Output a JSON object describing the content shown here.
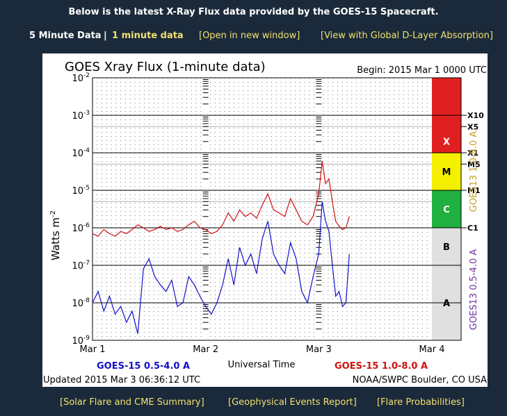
{
  "header": {
    "title": "Below is the latest X-Ray Flux data provided by the GOES-15 Spacecraft."
  },
  "nav": {
    "five_min": "5 Minute Data",
    "sep": "|",
    "one_min": "1 minute data",
    "open_window": "[Open in new window]",
    "dlayer": "[View with Global D-Layer Absorption]"
  },
  "footer": {
    "flare_summary": "[Solar Flare and CME Summary]",
    "geo_events": "[Geophysical Events Report]",
    "flare_prob": "[Flare Probabilities]"
  },
  "colors": {
    "page_bg": "#1b2a3a",
    "short_channel": "#1010c8",
    "long_channel": "#d01010",
    "class_x": "#e02020",
    "class_m": "#f5f000",
    "class_c": "#20b040",
    "class_b_a": "#e0e0e0",
    "goes13_label": "#c8a020",
    "goes13_label2": "#7030a0"
  },
  "chart_data": {
    "type": "line",
    "title": "GOES Xray Flux (1-minute data)",
    "begin": "Begin:  2015 Mar 1 0000 UTC",
    "ylabel": "Watts m",
    "ylabel_sup": "-2",
    "xlabel": "Universal Time",
    "yscale": "log",
    "ylim": [
      1e-09,
      0.01
    ],
    "y_ticks": [
      {
        "base": "10",
        "exp": "-2",
        "value": 0.01
      },
      {
        "base": "10",
        "exp": "-3",
        "value": 0.001
      },
      {
        "base": "10",
        "exp": "-4",
        "value": 0.0001
      },
      {
        "base": "10",
        "exp": "-5",
        "value": 1e-05
      },
      {
        "base": "10",
        "exp": "-6",
        "value": 1e-06
      },
      {
        "base": "10",
        "exp": "-7",
        "value": 1e-07
      },
      {
        "base": "10",
        "exp": "-8",
        "value": 1e-08
      },
      {
        "base": "10",
        "exp": "-9",
        "value": 1e-09
      }
    ],
    "xlim_days": [
      0,
      3
    ],
    "x_ticks": [
      {
        "label": "Mar 1",
        "day": 0
      },
      {
        "label": "Mar 2",
        "day": 1
      },
      {
        "label": "Mar 3",
        "day": 2
      },
      {
        "label": "Mar 4",
        "day": 3
      }
    ],
    "class_labels": [
      {
        "label": "X10",
        "value": 0.001
      },
      {
        "label": "X5",
        "value": 0.0005
      },
      {
        "label": "X1",
        "value": 0.0001
      },
      {
        "label": "M5",
        "value": 5e-05
      },
      {
        "label": "M1",
        "value": 1e-05
      },
      {
        "label": "C1",
        "value": 1e-06
      }
    ],
    "class_bands": [
      {
        "label": "X",
        "lo": 0.0001,
        "hi": 0.01
      },
      {
        "label": "M",
        "lo": 1e-05,
        "hi": 0.0001
      },
      {
        "label": "C",
        "lo": 1e-06,
        "hi": 1e-05
      },
      {
        "label": "B",
        "lo": 1e-07,
        "hi": 1e-06
      },
      {
        "label": "A",
        "lo": 1e-09,
        "hi": 1e-07
      }
    ],
    "right_label_1": "GOES13 1.0-8.0 A",
    "right_label_2": "GOES13 0.5-4.0 A",
    "series": [
      {
        "name": "GOES-15 1.0-8.0 A",
        "x": [
          0,
          0.05,
          0.1,
          0.15,
          0.2,
          0.25,
          0.3,
          0.35,
          0.4,
          0.45,
          0.5,
          0.55,
          0.6,
          0.65,
          0.7,
          0.75,
          0.8,
          0.85,
          0.9,
          0.95,
          1.0,
          1.05,
          1.1,
          1.15,
          1.2,
          1.25,
          1.3,
          1.35,
          1.4,
          1.45,
          1.5,
          1.55,
          1.6,
          1.65,
          1.7,
          1.75,
          1.8,
          1.85,
          1.9,
          1.95,
          2.0,
          2.03,
          2.06,
          2.09,
          2.12,
          2.15,
          2.18,
          2.21,
          2.24,
          2.27
        ],
        "values": [
          7e-07,
          6e-07,
          9e-07,
          7e-07,
          6e-07,
          8e-07,
          7e-07,
          9e-07,
          1.2e-06,
          1e-06,
          8e-07,
          9e-07,
          1.1e-06,
          9e-07,
          1e-06,
          8e-07,
          9e-07,
          1.2e-06,
          1.5e-06,
          1e-06,
          9e-07,
          7e-07,
          8e-07,
          1.2e-06,
          2.5e-06,
          1.5e-06,
          3e-06,
          2e-06,
          2.5e-06,
          1.8e-06,
          4e-06,
          8e-06,
          3e-06,
          2.5e-06,
          2e-06,
          6e-06,
          3e-06,
          1.5e-06,
          1.2e-06,
          2e-06,
          8e-06,
          6e-05,
          1.5e-05,
          2e-05,
          5e-06,
          1.5e-06,
          1.1e-06,
          9e-07,
          1e-06,
          2e-06
        ]
      },
      {
        "name": "GOES-15 0.5-4.0 A",
        "x": [
          0,
          0.05,
          0.1,
          0.15,
          0.2,
          0.25,
          0.3,
          0.35,
          0.4,
          0.45,
          0.5,
          0.55,
          0.6,
          0.65,
          0.7,
          0.75,
          0.8,
          0.85,
          0.9,
          0.95,
          1.0,
          1.05,
          1.1,
          1.15,
          1.2,
          1.25,
          1.3,
          1.35,
          1.4,
          1.45,
          1.5,
          1.55,
          1.6,
          1.65,
          1.7,
          1.75,
          1.8,
          1.85,
          1.9,
          1.95,
          2.0,
          2.03,
          2.06,
          2.09,
          2.12,
          2.15,
          2.18,
          2.21,
          2.24,
          2.27
        ],
        "values": [
          1e-08,
          2e-08,
          6e-09,
          1.5e-08,
          5e-09,
          8e-09,
          3e-09,
          6e-09,
          1.5e-09,
          8e-08,
          1.5e-07,
          5e-08,
          3e-08,
          2e-08,
          4e-08,
          8e-09,
          1e-08,
          5e-08,
          3e-08,
          1.5e-08,
          8e-09,
          5e-09,
          1e-08,
          3e-08,
          1.5e-07,
          3e-08,
          3e-07,
          1e-07,
          2e-07,
          6e-08,
          5e-07,
          1.5e-06,
          2e-07,
          1e-07,
          6e-08,
          4e-07,
          1.5e-07,
          2e-08,
          1e-08,
          5e-08,
          2e-07,
          5e-06,
          1.5e-06,
          8e-07,
          1e-07,
          1.5e-08,
          2e-08,
          8e-09,
          1e-08,
          2e-07
        ]
      }
    ],
    "legend_short": "GOES-15 0.5-4.0 A",
    "legend_long": "GOES-15 1.0-8.0 A",
    "updated": "Updated 2015 Mar  3 06:36:12 UTC",
    "credit": "NOAA/SWPC Boulder, CO USA"
  }
}
